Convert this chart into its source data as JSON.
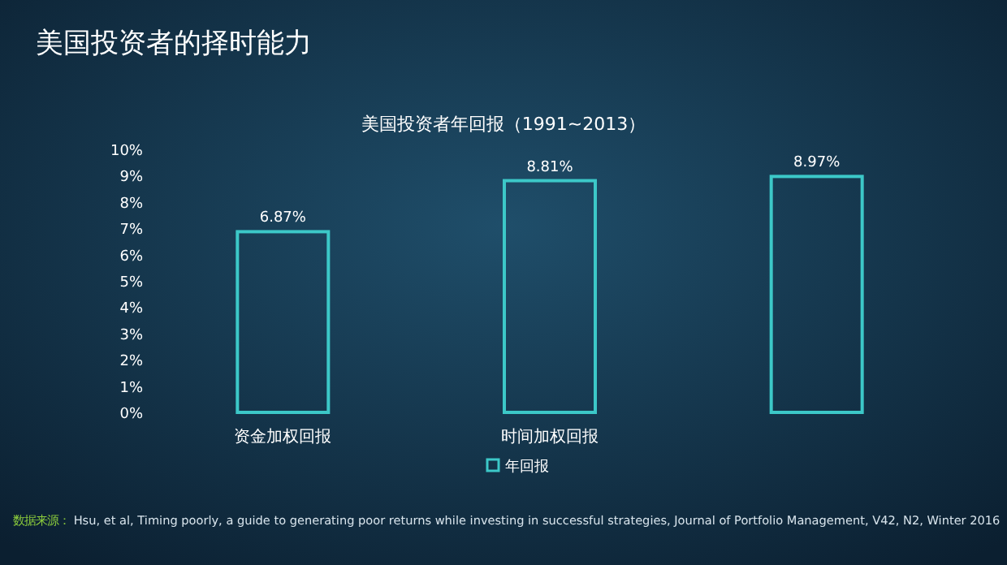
{
  "chart_data": {
    "type": "bar",
    "title": "美国投资者的择时能力",
    "subtitle": "美国投资者年回报（1991~2013）",
    "categories": [
      "资金加权回报",
      "时间加权回报",
      null
    ],
    "series": [
      {
        "name": "年回报",
        "color": "#3cc8c8",
        "values": [
          6.87,
          8.81,
          8.97
        ],
        "value_labels": [
          "6.87%",
          "8.81%",
          "8.97%"
        ]
      }
    ],
    "ylim": [
      0,
      10
    ],
    "yticks": [
      {
        "value": 0,
        "label": "0%"
      },
      {
        "value": 1,
        "label": "1%"
      },
      {
        "value": 2,
        "label": "2%"
      },
      {
        "value": 3,
        "label": "3%"
      },
      {
        "value": 4,
        "label": "4%"
      },
      {
        "value": 5,
        "label": "5%"
      },
      {
        "value": 6,
        "label": "6%"
      },
      {
        "value": 7,
        "label": "7%"
      },
      {
        "value": 8,
        "label": "8%"
      },
      {
        "value": 9,
        "label": "9%"
      },
      {
        "value": 10,
        "label": "10%"
      }
    ],
    "legend": "bottom",
    "grid": false,
    "annotations": [
      "数据来源：",
      "Hsu, et al, Timing poorly, a guide to generating poor returns while investing in successful strategies, Journal of Portfolio Management, V42, N2, Winter 2016"
    ]
  }
}
